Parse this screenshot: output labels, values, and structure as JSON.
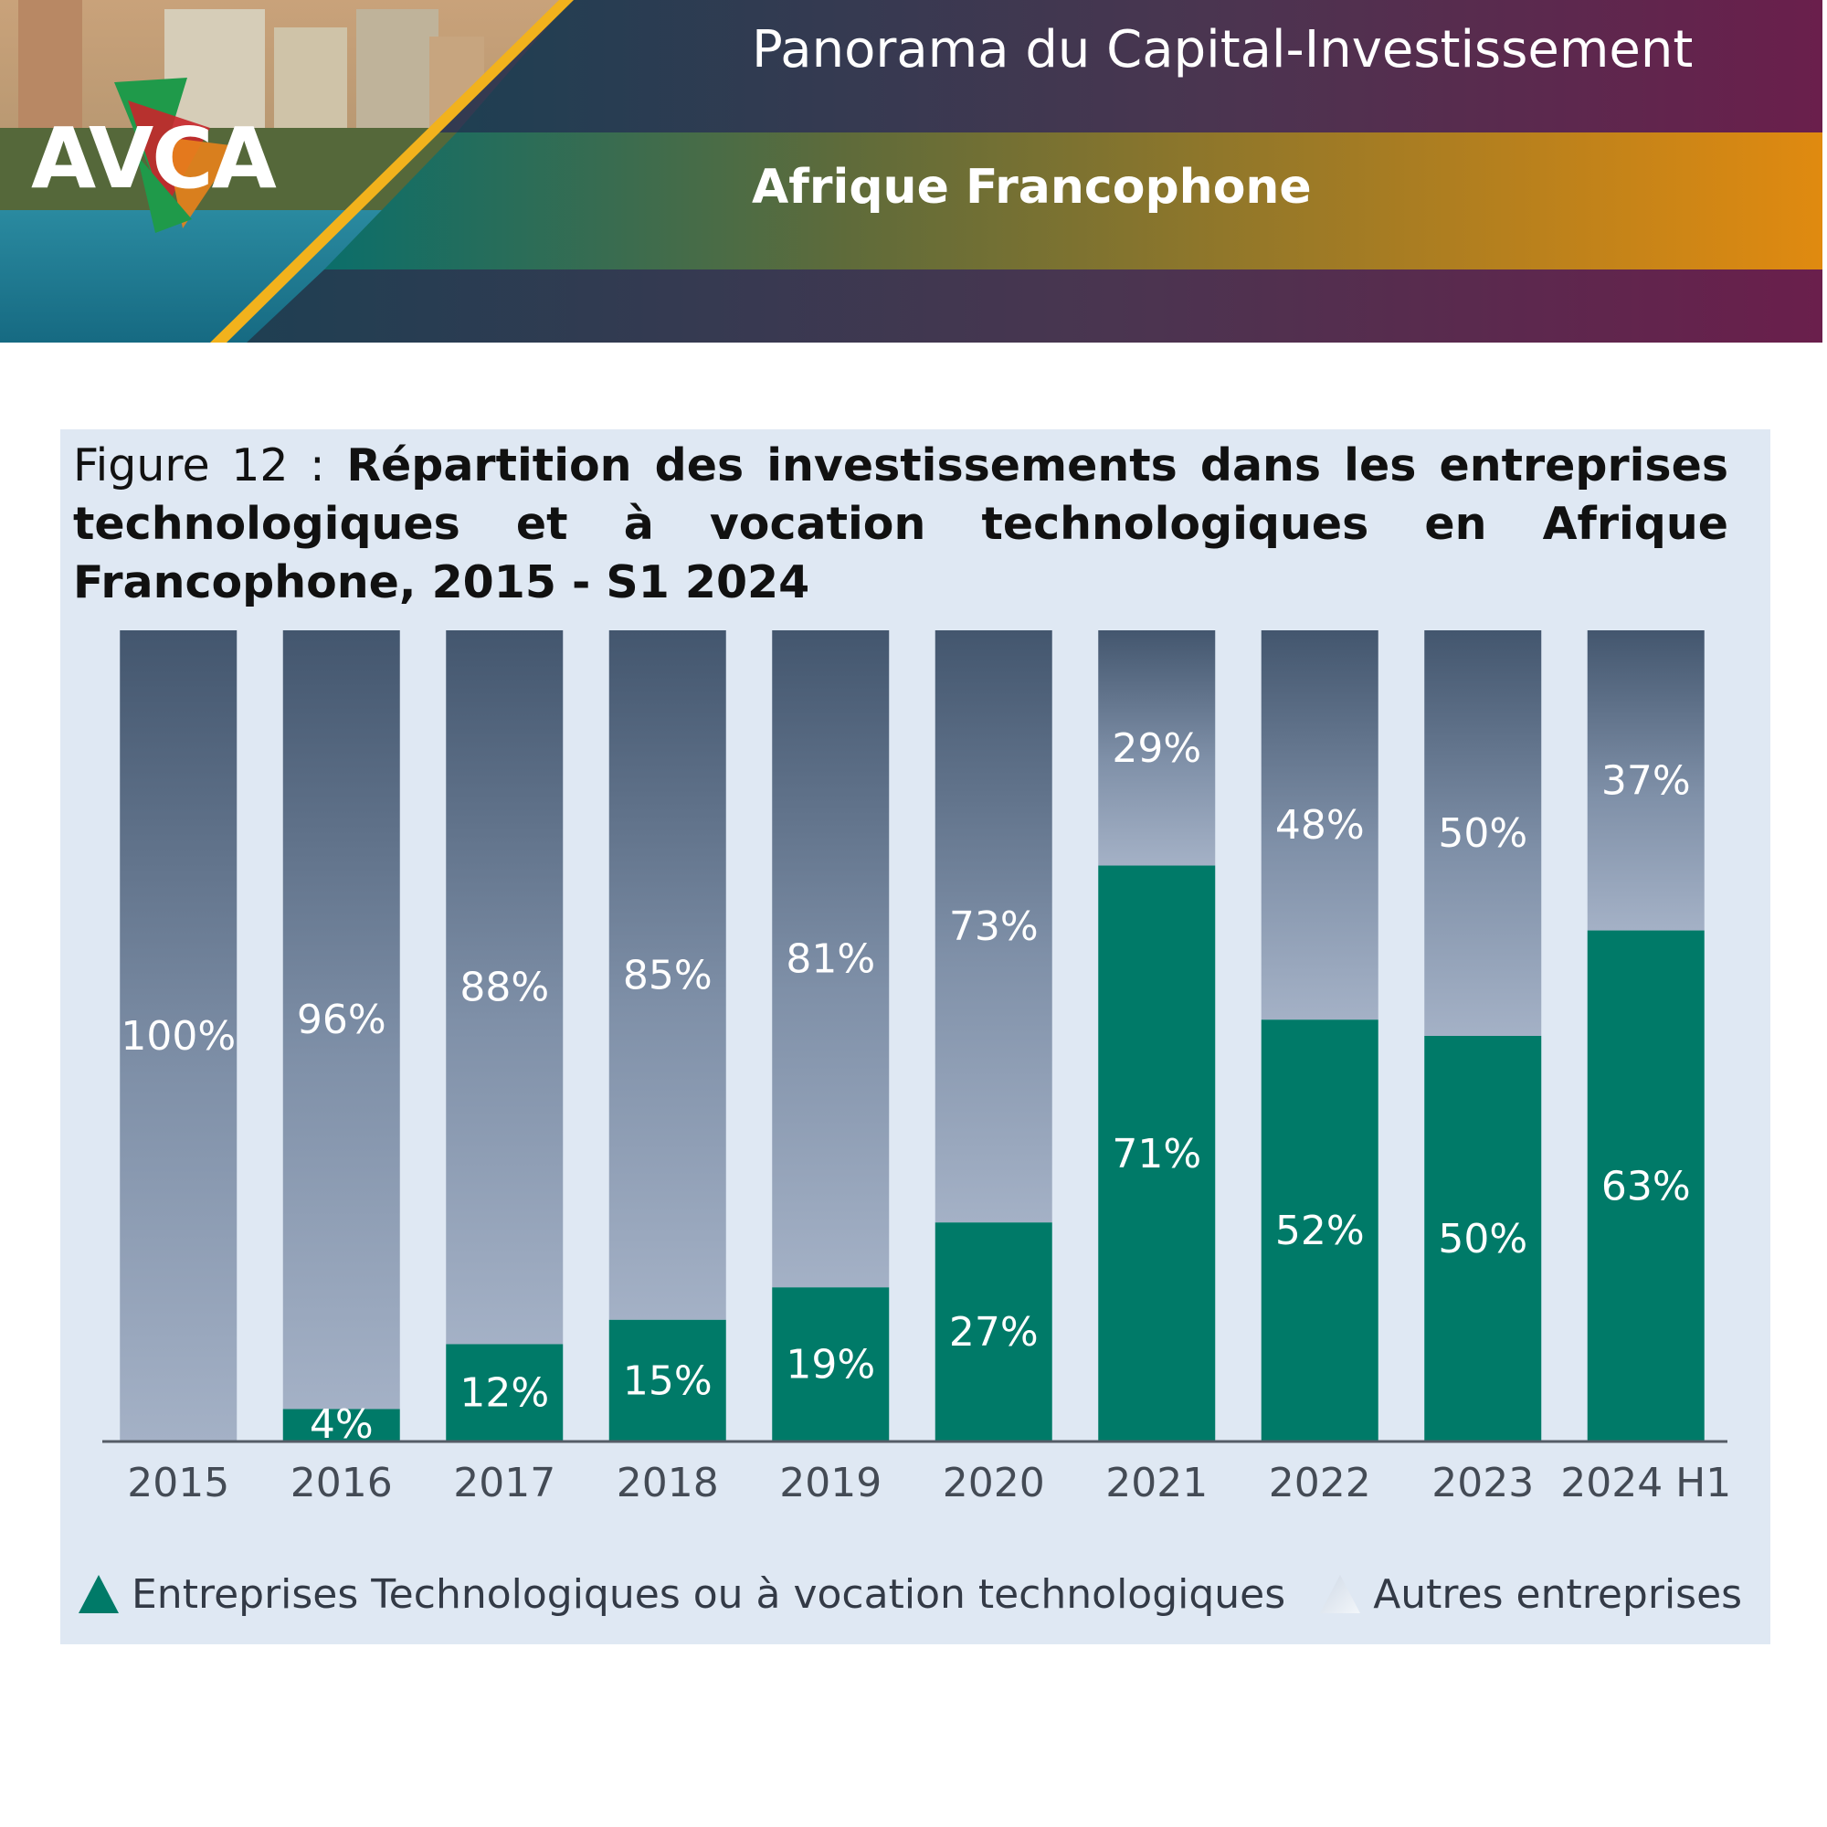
{
  "header": {
    "logo_text": "AVCA",
    "title": "Panorama du Capital-Investissement",
    "subtitle": "Afrique Francophone"
  },
  "figure": {
    "title_prefix": "Figure 12 : ",
    "title_main": "Répartition des investissements dans les entreprises technologiques et à vocation technologiques en Afrique Francophone, 2015 - S1 2024"
  },
  "chart_data": {
    "type": "bar",
    "stacked": true,
    "categories": [
      "2015",
      "2016",
      "2017",
      "2018",
      "2019",
      "2020",
      "2021",
      "2022",
      "2023",
      "2024 H1"
    ],
    "series": [
      {
        "name": "Entreprises Technologiques ou à vocation technologiques",
        "values": [
          0,
          4,
          12,
          15,
          19,
          27,
          71,
          52,
          50,
          63
        ],
        "color": "#007a68"
      },
      {
        "name": "Autres entreprises",
        "values": [
          100,
          96,
          88,
          85,
          81,
          73,
          29,
          48,
          50,
          37
        ],
        "color": "#7f90a8"
      }
    ],
    "value_suffix": "%",
    "ylim": [
      0,
      100
    ],
    "grid": false,
    "legend": "bottom"
  }
}
